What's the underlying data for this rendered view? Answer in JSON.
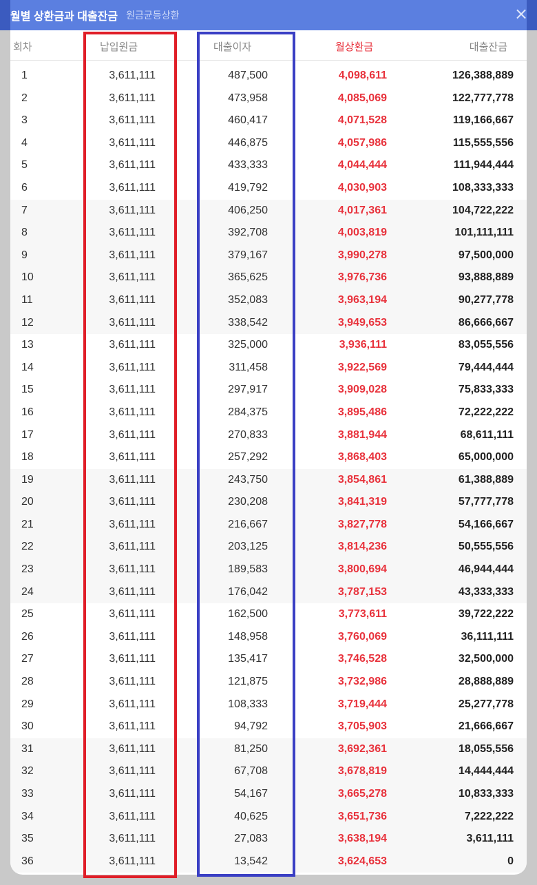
{
  "modal": {
    "title": "월별 상환금과 대출잔금",
    "subtitle": "원금균등상환",
    "close_label": "×"
  },
  "table": {
    "headers": {
      "no": "회차",
      "principal": "납입원금",
      "interest": "대출이자",
      "payment": "월상환금",
      "balance": "대출잔금"
    },
    "rows": [
      {
        "no": "1",
        "principal": "3,611,111",
        "interest": "487,500",
        "payment": "4,098,611",
        "balance": "126,388,889"
      },
      {
        "no": "2",
        "principal": "3,611,111",
        "interest": "473,958",
        "payment": "4,085,069",
        "balance": "122,777,778"
      },
      {
        "no": "3",
        "principal": "3,611,111",
        "interest": "460,417",
        "payment": "4,071,528",
        "balance": "119,166,667"
      },
      {
        "no": "4",
        "principal": "3,611,111",
        "interest": "446,875",
        "payment": "4,057,986",
        "balance": "115,555,556"
      },
      {
        "no": "5",
        "principal": "3,611,111",
        "interest": "433,333",
        "payment": "4,044,444",
        "balance": "111,944,444"
      },
      {
        "no": "6",
        "principal": "3,611,111",
        "interest": "419,792",
        "payment": "4,030,903",
        "balance": "108,333,333"
      },
      {
        "no": "7",
        "principal": "3,611,111",
        "interest": "406,250",
        "payment": "4,017,361",
        "balance": "104,722,222"
      },
      {
        "no": "8",
        "principal": "3,611,111",
        "interest": "392,708",
        "payment": "4,003,819",
        "balance": "101,111,111"
      },
      {
        "no": "9",
        "principal": "3,611,111",
        "interest": "379,167",
        "payment": "3,990,278",
        "balance": "97,500,000"
      },
      {
        "no": "10",
        "principal": "3,611,111",
        "interest": "365,625",
        "payment": "3,976,736",
        "balance": "93,888,889"
      },
      {
        "no": "11",
        "principal": "3,611,111",
        "interest": "352,083",
        "payment": "3,963,194",
        "balance": "90,277,778"
      },
      {
        "no": "12",
        "principal": "3,611,111",
        "interest": "338,542",
        "payment": "3,949,653",
        "balance": "86,666,667"
      },
      {
        "no": "13",
        "principal": "3,611,111",
        "interest": "325,000",
        "payment": "3,936,111",
        "balance": "83,055,556"
      },
      {
        "no": "14",
        "principal": "3,611,111",
        "interest": "311,458",
        "payment": "3,922,569",
        "balance": "79,444,444"
      },
      {
        "no": "15",
        "principal": "3,611,111",
        "interest": "297,917",
        "payment": "3,909,028",
        "balance": "75,833,333"
      },
      {
        "no": "16",
        "principal": "3,611,111",
        "interest": "284,375",
        "payment": "3,895,486",
        "balance": "72,222,222"
      },
      {
        "no": "17",
        "principal": "3,611,111",
        "interest": "270,833",
        "payment": "3,881,944",
        "balance": "68,611,111"
      },
      {
        "no": "18",
        "principal": "3,611,111",
        "interest": "257,292",
        "payment": "3,868,403",
        "balance": "65,000,000"
      },
      {
        "no": "19",
        "principal": "3,611,111",
        "interest": "243,750",
        "payment": "3,854,861",
        "balance": "61,388,889"
      },
      {
        "no": "20",
        "principal": "3,611,111",
        "interest": "230,208",
        "payment": "3,841,319",
        "balance": "57,777,778"
      },
      {
        "no": "21",
        "principal": "3,611,111",
        "interest": "216,667",
        "payment": "3,827,778",
        "balance": "54,166,667"
      },
      {
        "no": "22",
        "principal": "3,611,111",
        "interest": "203,125",
        "payment": "3,814,236",
        "balance": "50,555,556"
      },
      {
        "no": "23",
        "principal": "3,611,111",
        "interest": "189,583",
        "payment": "3,800,694",
        "balance": "46,944,444"
      },
      {
        "no": "24",
        "principal": "3,611,111",
        "interest": "176,042",
        "payment": "3,787,153",
        "balance": "43,333,333"
      },
      {
        "no": "25",
        "principal": "3,611,111",
        "interest": "162,500",
        "payment": "3,773,611",
        "balance": "39,722,222"
      },
      {
        "no": "26",
        "principal": "3,611,111",
        "interest": "148,958",
        "payment": "3,760,069",
        "balance": "36,111,111"
      },
      {
        "no": "27",
        "principal": "3,611,111",
        "interest": "135,417",
        "payment": "3,746,528",
        "balance": "32,500,000"
      },
      {
        "no": "28",
        "principal": "3,611,111",
        "interest": "121,875",
        "payment": "3,732,986",
        "balance": "28,888,889"
      },
      {
        "no": "29",
        "principal": "3,611,111",
        "interest": "108,333",
        "payment": "3,719,444",
        "balance": "25,277,778"
      },
      {
        "no": "30",
        "principal": "3,611,111",
        "interest": "94,792",
        "payment": "3,705,903",
        "balance": "21,666,667"
      },
      {
        "no": "31",
        "principal": "3,611,111",
        "interest": "81,250",
        "payment": "3,692,361",
        "balance": "18,055,556"
      },
      {
        "no": "32",
        "principal": "3,611,111",
        "interest": "67,708",
        "payment": "3,678,819",
        "balance": "14,444,444"
      },
      {
        "no": "33",
        "principal": "3,611,111",
        "interest": "54,167",
        "payment": "3,665,278",
        "balance": "10,833,333"
      },
      {
        "no": "34",
        "principal": "3,611,111",
        "interest": "40,625",
        "payment": "3,651,736",
        "balance": "7,222,222"
      },
      {
        "no": "35",
        "principal": "3,611,111",
        "interest": "27,083",
        "payment": "3,638,194",
        "balance": "3,611,111"
      },
      {
        "no": "36",
        "principal": "3,611,111",
        "interest": "13,542",
        "payment": "3,624,653",
        "balance": "0"
      }
    ]
  },
  "colors": {
    "titlebar": "#5b7fe0",
    "payment_red": "#e8323c",
    "highlight_red": "#e01e28",
    "highlight_blue": "#3a3fc4"
  }
}
